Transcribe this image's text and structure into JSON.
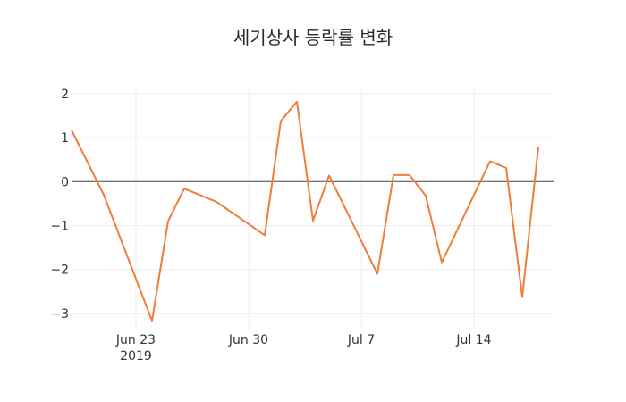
{
  "chart_data": {
    "type": "line",
    "title": "세기상사 등락률 변화",
    "xlabel": "",
    "ylabel": "",
    "ylim": [
      -3.35,
      2.1
    ],
    "yticks": [
      {
        "value": 2,
        "label": "2"
      },
      {
        "value": 1,
        "label": "1"
      },
      {
        "value": 0,
        "label": "0"
      },
      {
        "value": -1,
        "label": "−1"
      },
      {
        "value": -2,
        "label": "−2"
      },
      {
        "value": -3,
        "label": "−3"
      }
    ],
    "xdomain": [
      "2019-06-19",
      "2019-07-19"
    ],
    "xticks": [
      {
        "date": "2019-06-23",
        "label": "Jun 23",
        "sublabel": "2019"
      },
      {
        "date": "2019-06-30",
        "label": "Jun 30",
        "sublabel": ""
      },
      {
        "date": "2019-07-07",
        "label": "Jul 7",
        "sublabel": ""
      },
      {
        "date": "2019-07-14",
        "label": "Jul 14",
        "sublabel": ""
      }
    ],
    "grid": true,
    "series": [
      {
        "name": "등락률",
        "color": "#f07d3a",
        "x": [
          "2019-06-19",
          "2019-06-21",
          "2019-06-24",
          "2019-06-25",
          "2019-06-26",
          "2019-06-28",
          "2019-07-01",
          "2019-07-02",
          "2019-07-03",
          "2019-07-04",
          "2019-07-05",
          "2019-07-08",
          "2019-07-09",
          "2019-07-10",
          "2019-07-11",
          "2019-07-12",
          "2019-07-15",
          "2019-07-16",
          "2019-07-17",
          "2019-07-18"
        ],
        "values": [
          1.17,
          -0.3,
          -3.17,
          -0.9,
          -0.16,
          -0.46,
          -1.22,
          1.38,
          1.82,
          -0.89,
          0.14,
          -2.1,
          0.15,
          0.15,
          -0.32,
          -1.84,
          0.46,
          0.31,
          -2.63,
          0.79
        ]
      }
    ]
  }
}
